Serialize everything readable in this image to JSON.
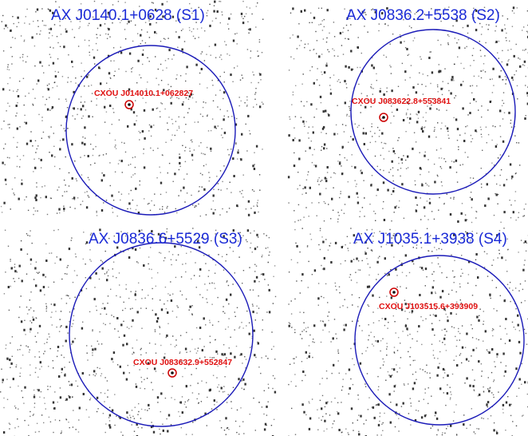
{
  "figure": {
    "panels": [
      {
        "id": "S1",
        "title": "AX J0140.1+0628 (S1)",
        "source_label": "CXOU J014010.1+062827"
      },
      {
        "id": "S2",
        "title": "AX J0836.2+5538 (S2)",
        "source_label": "CXOU J083622.8+553841"
      },
      {
        "id": "S3",
        "title": "AX J0836.6+5529 (S3)",
        "source_label": "CXOU J083632.9+552847"
      },
      {
        "id": "S4",
        "title": "AX J1035.1+3938 (S4)",
        "source_label": "CXOU J103515.6+393909"
      }
    ],
    "colors": {
      "title": "#1a2ad6",
      "field_circle": "#1a1ab8",
      "source_marker": "#cc0000",
      "source_label": "#e01010",
      "photon_events": "#2a2a2a",
      "background": "#ffffff"
    }
  }
}
